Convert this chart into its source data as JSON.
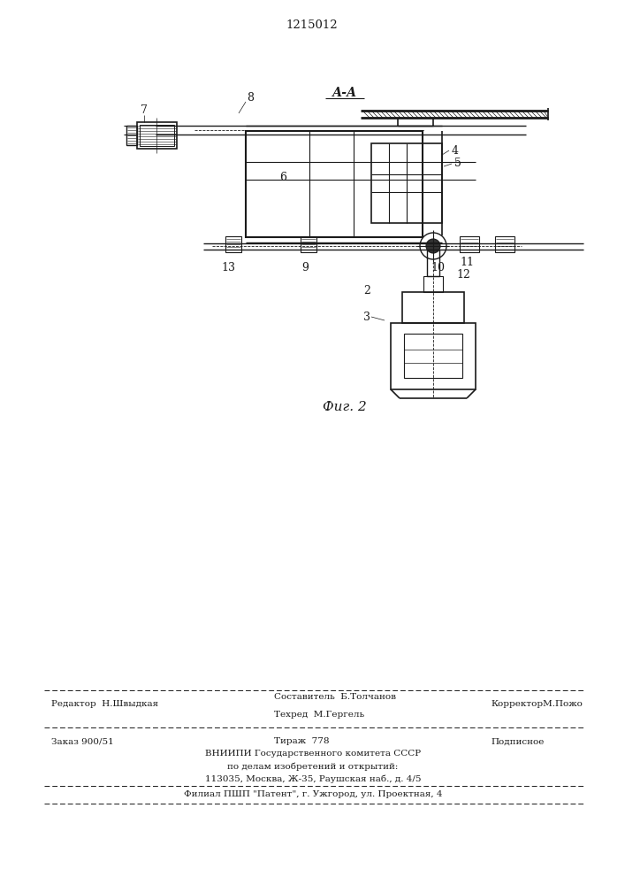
{
  "patent_number": "1215012",
  "fig_label": "Фиг. 2",
  "section_label": "А-А",
  "bg_color": "#ffffff",
  "line_color": "#1a1a1a",
  "footer": {
    "editor": "Редактор  Н.Швыдкая",
    "composer": "Составитель  Б.Толчанов",
    "techred": "Техред  М.Гергель",
    "corrector": "КорректорМ.Пожо",
    "order": "Заказ 900/51",
    "copies": "Тираж  778",
    "subscription": "Подписное",
    "vniipi1": "ВНИИПИ Государственного комитета СССР",
    "vniipi2": "по делам изобретений и открытий:",
    "vniipi3": "113035, Москва, Ж-35, Раушская наб., д. 4/5",
    "filial": "Филиал ПШП \"Патент\", г. Ужгород, ул. Проектная, 4"
  }
}
